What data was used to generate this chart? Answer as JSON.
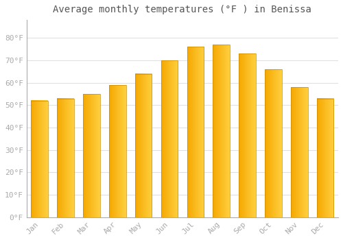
{
  "months": [
    "Jan",
    "Feb",
    "Mar",
    "Apr",
    "May",
    "Jun",
    "Jul",
    "Aug",
    "Sep",
    "Oct",
    "Nov",
    "Dec"
  ],
  "values": [
    52,
    53,
    55,
    59,
    64,
    70,
    76,
    77,
    73,
    66,
    58,
    53
  ],
  "bar_color_left": "#F5A800",
  "bar_color_right": "#FFD040",
  "title": "Average monthly temperatures (°F ) in Benissa",
  "ylim": [
    0,
    88
  ],
  "yticks": [
    0,
    10,
    20,
    30,
    40,
    50,
    60,
    70,
    80
  ],
  "ytick_labels": [
    "0°F",
    "10°F",
    "20°F",
    "30°F",
    "40°F",
    "50°F",
    "60°F",
    "70°F",
    "80°F"
  ],
  "background_color": "#ffffff",
  "grid_color": "#e0e0e0",
  "title_fontsize": 10,
  "tick_fontsize": 8,
  "tick_color": "#aaaaaa"
}
